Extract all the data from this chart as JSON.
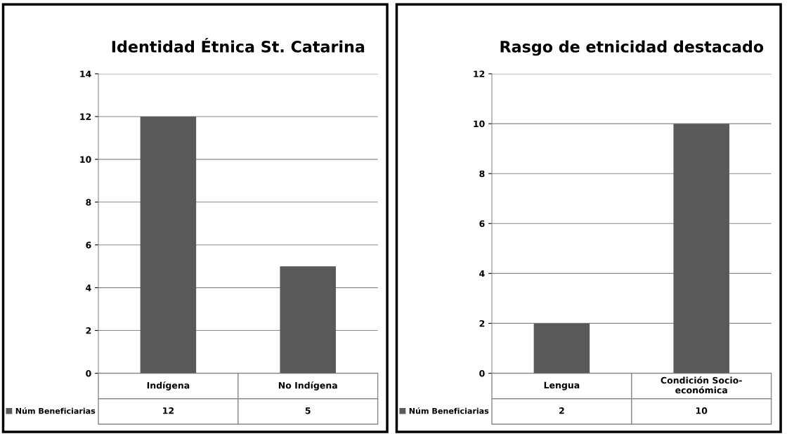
{
  "chart_data": [
    {
      "type": "bar",
      "title": "Identidad Étnica St. Catarina",
      "categories": [
        "Indígena",
        "No Indígena"
      ],
      "series": [
        {
          "name": "Núm Beneficiarias",
          "color": "#595959",
          "values": [
            12,
            5
          ]
        }
      ],
      "ylim": [
        0,
        14
      ],
      "yticks": [
        0,
        2,
        4,
        6,
        8,
        10,
        12,
        14
      ],
      "grid": "y",
      "data_labels": true,
      "legend": "bottom left"
    },
    {
      "type": "bar",
      "title": "Rasgo de etnicidad destacado",
      "categories": [
        "Lengua",
        "Condición Socio-económica"
      ],
      "series": [
        {
          "name": "Núm Beneficiarias",
          "color": "#595959",
          "values": [
            2,
            10
          ]
        }
      ],
      "ylim": [
        0,
        12
      ],
      "yticks": [
        0,
        2,
        4,
        6,
        8,
        10,
        12
      ],
      "grid": "y",
      "data_labels": true,
      "legend": "bottom left"
    }
  ]
}
